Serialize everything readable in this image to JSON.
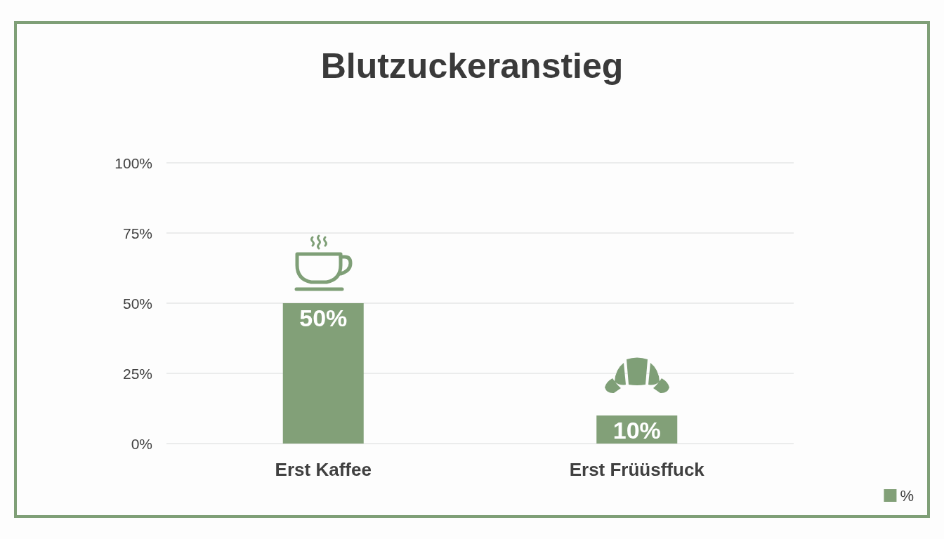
{
  "chart_data": {
    "type": "bar",
    "title": "Blutzuckeranstieg",
    "categories": [
      "Erst Kaffee",
      "Erst Früüsffuck"
    ],
    "series": [
      {
        "name": "%",
        "color": "#82a078",
        "values": [
          50,
          10
        ],
        "value_labels": [
          "50%",
          "10%"
        ]
      }
    ],
    "ylim": [
      0,
      100
    ],
    "yticks": [
      {
        "value": 0,
        "label": "0%"
      },
      {
        "value": 25,
        "label": "25%"
      },
      {
        "value": 50,
        "label": "50%"
      },
      {
        "value": 75,
        "label": "75%"
      },
      {
        "value": 100,
        "label": "100%"
      }
    ],
    "grid": "y",
    "legend": "bottom right"
  }
}
